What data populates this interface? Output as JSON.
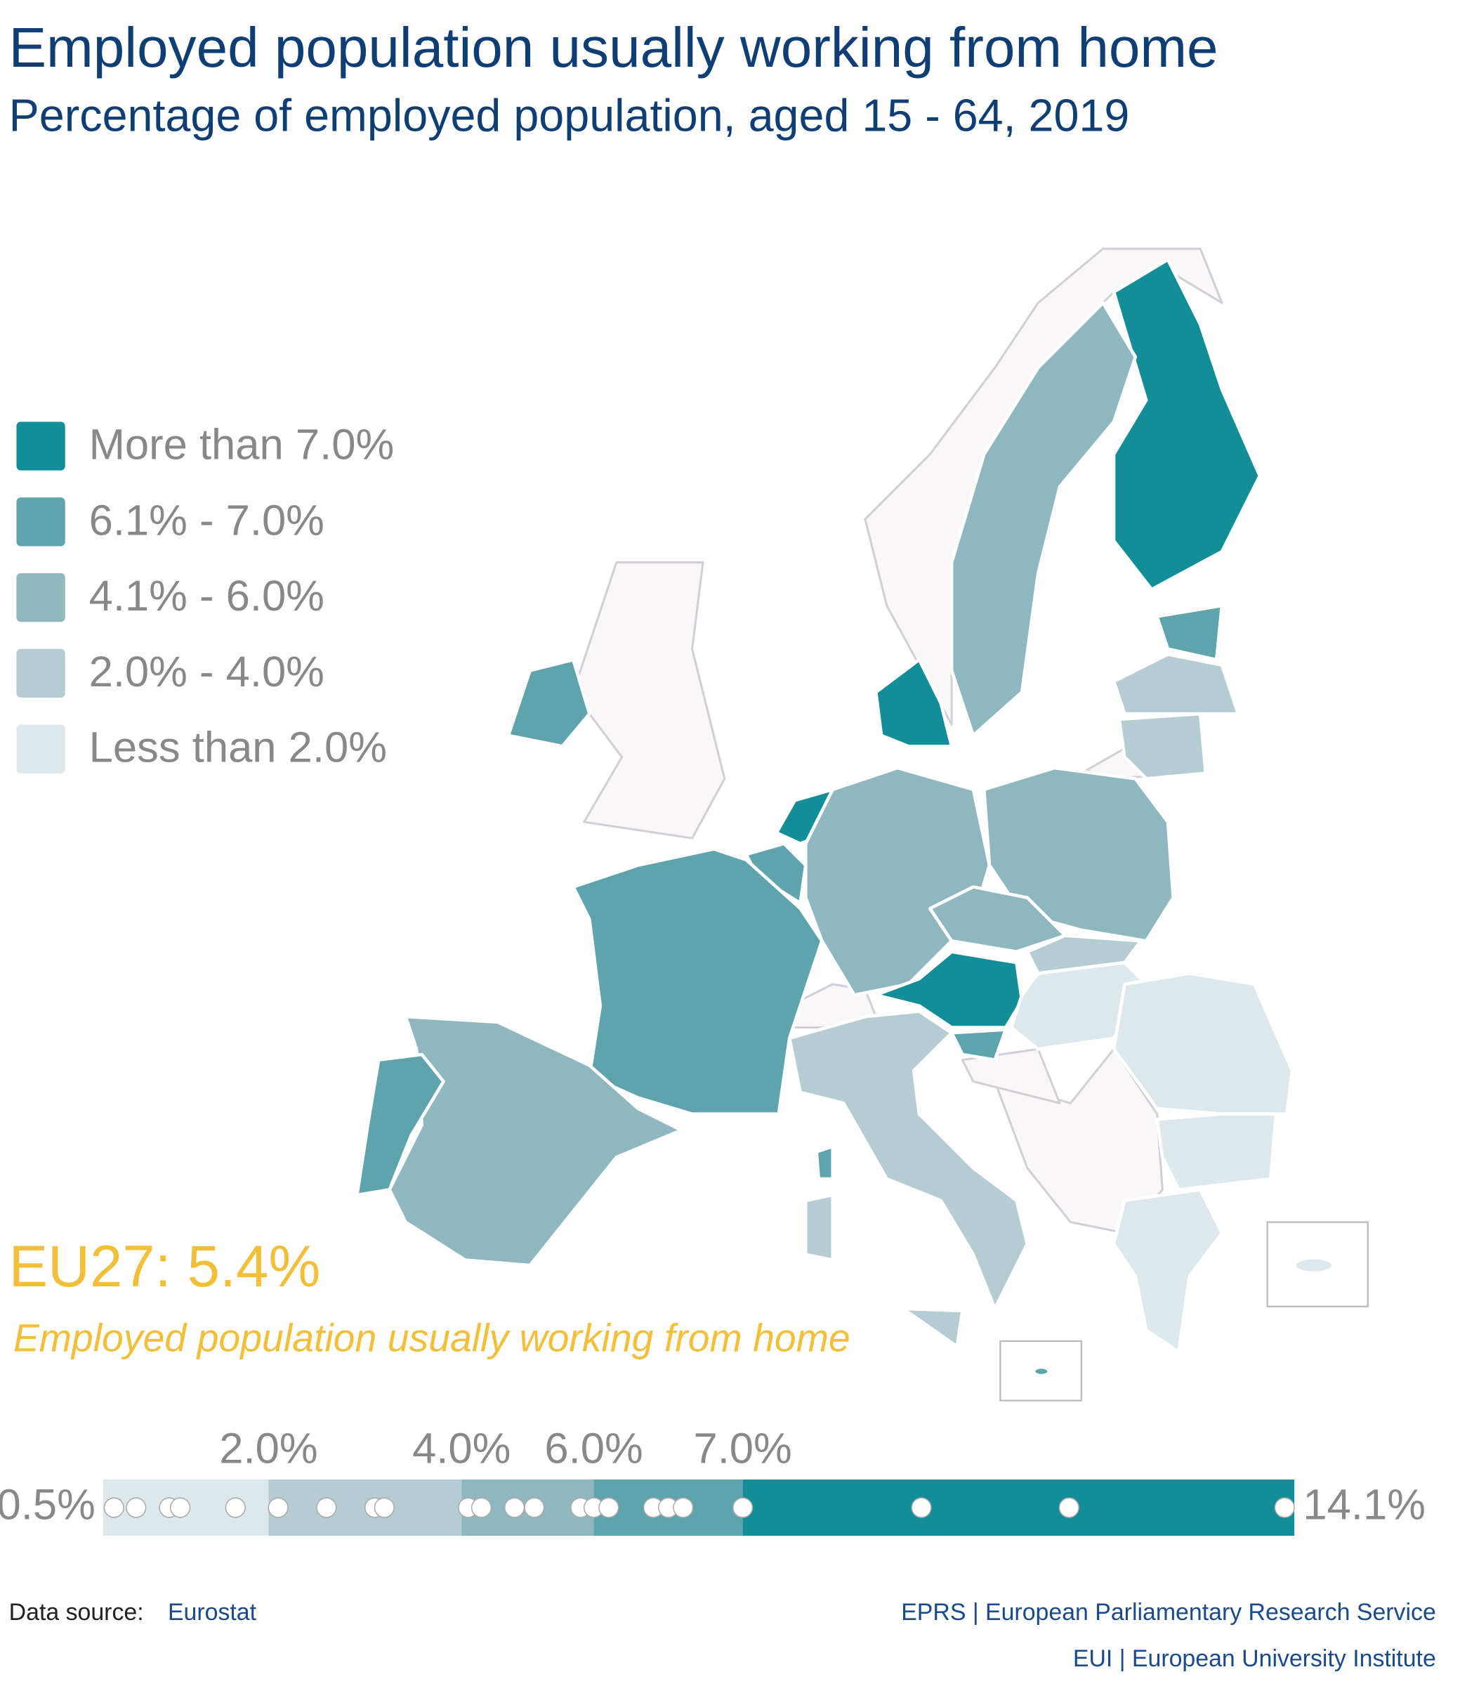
{
  "chart_data": {
    "type": "map",
    "title": "Employed population usually working from home",
    "subtitle": "Percentage of employed population, aged 15 - 64, 2019",
    "legend": [
      {
        "label": "More than 7.0%",
        "color": "#138d97"
      },
      {
        "label": "6.1% - 7.0%",
        "color": "#5fa3ad"
      },
      {
        "label": "4.1% - 6.0%",
        "color": "#8fb7bf"
      },
      {
        "label": "2.0% - 4.0%",
        "color": "#b5ccd2"
      },
      {
        "label": "Less than 2.0%",
        "color": "#dce8eb"
      }
    ],
    "headline": "EU27: 5.4%",
    "headline_caption": "Employed population usually working from home",
    "scale": {
      "type": "dot",
      "xlim": [
        0.5,
        14.1
      ],
      "xticks": [
        {
          "value": 0.5,
          "label": "0.5%"
        },
        {
          "value": 2.0,
          "label": "2.0%"
        },
        {
          "value": 4.0,
          "label": "4.0%"
        },
        {
          "value": 6.0,
          "label": "6.0%"
        },
        {
          "value": 7.0,
          "label": "7.0%"
        },
        {
          "value": 14.1,
          "label": "14.1%"
        }
      ],
      "band_colors": [
        "#dce8eb",
        "#b5ccd2",
        "#8fb7bf",
        "#5fa3ad",
        "#138d97"
      ],
      "values": [
        0.6,
        0.8,
        1.1,
        1.2,
        1.7,
        2.1,
        2.6,
        3.1,
        3.2,
        4.1,
        4.3,
        4.8,
        5.1,
        5.8,
        6.0,
        6.1,
        6.4,
        6.5,
        6.6,
        7.0,
        9.3,
        11.2,
        14.1
      ]
    },
    "source_label": "Data source:",
    "source": "Eurostat",
    "credits": [
      "EPRS | European Parliamentary Research Service",
      "EUI | European University Institute"
    ]
  }
}
